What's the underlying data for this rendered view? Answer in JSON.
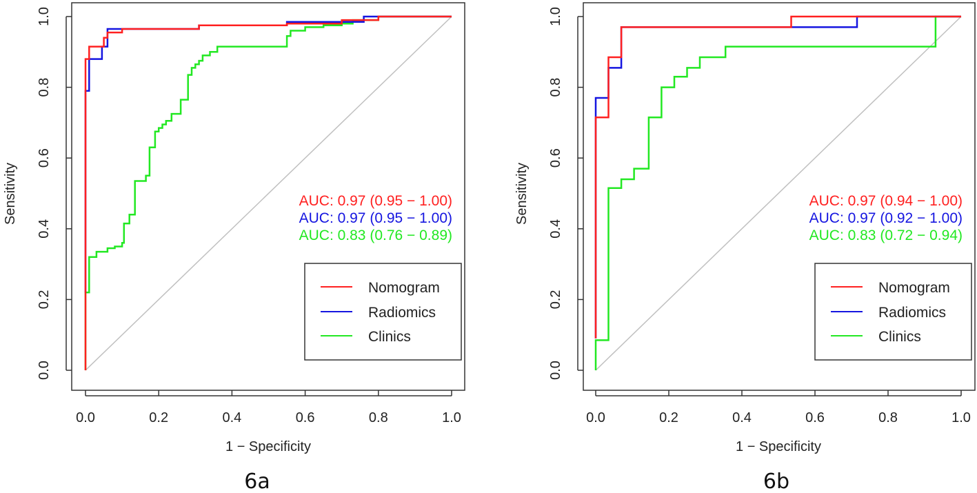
{
  "colors": {
    "nomogram": "#ff2020",
    "radiomics": "#1515e0",
    "clinics": "#22e822",
    "diagonal": "#c0c0c0",
    "frame": "#333333"
  },
  "chart_data": [
    {
      "type": "line",
      "caption": "6a",
      "xlabel": "1 − Specificity",
      "ylabel": "Sensitivity",
      "xlim": [
        0,
        1
      ],
      "ylim": [
        0,
        1
      ],
      "xticks": [
        "0.0",
        "0.2",
        "0.4",
        "0.6",
        "0.8",
        "1.0"
      ],
      "yticks": [
        "0.0",
        "0.2",
        "0.4",
        "0.6",
        "0.8",
        "1.0"
      ],
      "legend_position": "bottom-right",
      "series": [
        {
          "name": "Nomogram",
          "color_key": "nomogram",
          "auc_label": "AUC: 0.97 (0.95 − 1.00)",
          "points": [
            [
              0,
              0
            ],
            [
              0,
              0.88
            ],
            [
              0.01,
              0.88
            ],
            [
              0.01,
              0.915
            ],
            [
              0.05,
              0.915
            ],
            [
              0.05,
              0.94
            ],
            [
              0.06,
              0.94
            ],
            [
              0.06,
              0.955
            ],
            [
              0.1,
              0.955
            ],
            [
              0.1,
              0.965
            ],
            [
              0.31,
              0.965
            ],
            [
              0.31,
              0.975
            ],
            [
              0.55,
              0.975
            ],
            [
              0.55,
              0.98
            ],
            [
              0.7,
              0.98
            ],
            [
              0.7,
              0.99
            ],
            [
              0.8,
              0.99
            ],
            [
              0.8,
              1
            ],
            [
              1,
              1
            ]
          ]
        },
        {
          "name": "Radiomics",
          "color_key": "radiomics",
          "auc_label": "AUC: 0.97 (0.95 − 1.00)",
          "points": [
            [
              0,
              0.22
            ],
            [
              0,
              0.79
            ],
            [
              0.01,
              0.79
            ],
            [
              0.01,
              0.88
            ],
            [
              0.045,
              0.88
            ],
            [
              0.045,
              0.915
            ],
            [
              0.06,
              0.915
            ],
            [
              0.06,
              0.965
            ],
            [
              0.31,
              0.965
            ],
            [
              0.31,
              0.975
            ],
            [
              0.55,
              0.975
            ],
            [
              0.55,
              0.985
            ],
            [
              0.76,
              0.985
            ],
            [
              0.76,
              1
            ],
            [
              1,
              1
            ]
          ]
        },
        {
          "name": "Clinics",
          "color_key": "clinics",
          "auc_label": "AUC: 0.83 (0.76 − 0.89)",
          "points": [
            [
              0,
              0
            ],
            [
              0,
              0.22
            ],
            [
              0.01,
              0.22
            ],
            [
              0.01,
              0.32
            ],
            [
              0.03,
              0.32
            ],
            [
              0.03,
              0.335
            ],
            [
              0.06,
              0.335
            ],
            [
              0.06,
              0.345
            ],
            [
              0.08,
              0.345
            ],
            [
              0.08,
              0.35
            ],
            [
              0.1,
              0.35
            ],
            [
              0.1,
              0.36
            ],
            [
              0.105,
              0.36
            ],
            [
              0.105,
              0.415
            ],
            [
              0.12,
              0.415
            ],
            [
              0.12,
              0.44
            ],
            [
              0.135,
              0.44
            ],
            [
              0.135,
              0.535
            ],
            [
              0.165,
              0.535
            ],
            [
              0.165,
              0.55
            ],
            [
              0.175,
              0.55
            ],
            [
              0.175,
              0.63
            ],
            [
              0.19,
              0.63
            ],
            [
              0.19,
              0.675
            ],
            [
              0.2,
              0.675
            ],
            [
              0.2,
              0.685
            ],
            [
              0.21,
              0.685
            ],
            [
              0.21,
              0.695
            ],
            [
              0.22,
              0.695
            ],
            [
              0.22,
              0.705
            ],
            [
              0.235,
              0.705
            ],
            [
              0.235,
              0.725
            ],
            [
              0.26,
              0.725
            ],
            [
              0.26,
              0.765
            ],
            [
              0.28,
              0.765
            ],
            [
              0.28,
              0.835
            ],
            [
              0.29,
              0.835
            ],
            [
              0.29,
              0.855
            ],
            [
              0.3,
              0.855
            ],
            [
              0.3,
              0.865
            ],
            [
              0.31,
              0.865
            ],
            [
              0.31,
              0.875
            ],
            [
              0.32,
              0.875
            ],
            [
              0.32,
              0.89
            ],
            [
              0.34,
              0.89
            ],
            [
              0.34,
              0.9
            ],
            [
              0.36,
              0.9
            ],
            [
              0.36,
              0.915
            ],
            [
              0.55,
              0.915
            ],
            [
              0.55,
              0.945
            ],
            [
              0.56,
              0.945
            ],
            [
              0.56,
              0.96
            ],
            [
              0.6,
              0.96
            ],
            [
              0.6,
              0.97
            ],
            [
              0.65,
              0.97
            ],
            [
              0.65,
              0.975
            ],
            [
              0.7,
              0.975
            ],
            [
              0.7,
              0.98
            ],
            [
              0.73,
              0.98
            ],
            [
              0.73,
              0.99
            ],
            [
              0.8,
              0.99
            ],
            [
              0.8,
              1
            ],
            [
              1,
              1
            ]
          ]
        }
      ]
    },
    {
      "type": "line",
      "caption": "6b",
      "xlabel": "1 − Specificity",
      "ylabel": "Sensitivity",
      "xlim": [
        0,
        1
      ],
      "ylim": [
        0,
        1
      ],
      "xticks": [
        "0.0",
        "0.2",
        "0.4",
        "0.6",
        "0.8",
        "1.0"
      ],
      "yticks": [
        "0.0",
        "0.2",
        "0.4",
        "0.6",
        "0.8",
        "1.0"
      ],
      "legend_position": "bottom-right",
      "series": [
        {
          "name": "Nomogram",
          "color_key": "nomogram",
          "auc_label": "AUC: 0.97 (0.94 − 1.00)",
          "points": [
            [
              0,
              0.09
            ],
            [
              0,
              0.715
            ],
            [
              0.035,
              0.715
            ],
            [
              0.035,
              0.885
            ],
            [
              0.07,
              0.885
            ],
            [
              0.07,
              0.97
            ],
            [
              0.535,
              0.97
            ],
            [
              0.535,
              1
            ],
            [
              1,
              1
            ]
          ]
        },
        {
          "name": "Radiomics",
          "color_key": "radiomics",
          "auc_label": "AUC: 0.97 (0.92 − 1.00)",
          "points": [
            [
              0,
              0.09
            ],
            [
              0,
              0.77
            ],
            [
              0.035,
              0.77
            ],
            [
              0.035,
              0.855
            ],
            [
              0.07,
              0.855
            ],
            [
              0.07,
              0.97
            ],
            [
              0.715,
              0.97
            ],
            [
              0.715,
              1
            ],
            [
              1,
              1
            ]
          ]
        },
        {
          "name": "Clinics",
          "color_key": "clinics",
          "auc_label": "AUC: 0.83 (0.72 − 0.94)",
          "points": [
            [
              0,
              0
            ],
            [
              0,
              0.085
            ],
            [
              0.035,
              0.085
            ],
            [
              0.035,
              0.515
            ],
            [
              0.07,
              0.515
            ],
            [
              0.07,
              0.54
            ],
            [
              0.105,
              0.54
            ],
            [
              0.105,
              0.57
            ],
            [
              0.145,
              0.57
            ],
            [
              0.145,
              0.715
            ],
            [
              0.18,
              0.715
            ],
            [
              0.18,
              0.8
            ],
            [
              0.215,
              0.8
            ],
            [
              0.215,
              0.83
            ],
            [
              0.25,
              0.83
            ],
            [
              0.25,
              0.855
            ],
            [
              0.285,
              0.855
            ],
            [
              0.285,
              0.885
            ],
            [
              0.355,
              0.885
            ],
            [
              0.355,
              0.915
            ],
            [
              0.93,
              0.915
            ],
            [
              0.93,
              1
            ],
            [
              1,
              1
            ]
          ]
        }
      ]
    }
  ]
}
